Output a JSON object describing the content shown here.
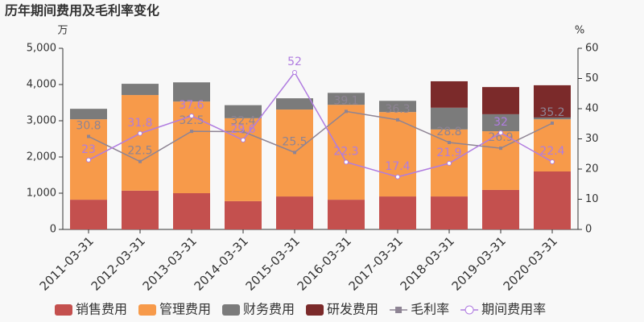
{
  "chart_data": {
    "type": "bar_line",
    "title": "历年期间费用及毛利率变化",
    "y_label": "万",
    "y2_label": "%",
    "categories": [
      "2011-03-31",
      "2012-03-31",
      "2013-03-31",
      "2014-03-31",
      "2015-03-31",
      "2016-03-31",
      "2017-03-31",
      "2018-03-31",
      "2019-03-31",
      "2020-03-31"
    ],
    "series": [
      {
        "name": "销售费用",
        "type": "bar",
        "color": "#c4504e",
        "values": [
          820,
          1070,
          1000,
          780,
          910,
          820,
          910,
          910,
          1090,
          1600
        ]
      },
      {
        "name": "管理费用",
        "type": "bar",
        "color": "#f79a4a",
        "values": [
          2220,
          2640,
          2530,
          2290,
          2400,
          2620,
          2330,
          1850,
          1620,
          1440
        ]
      },
      {
        "name": "财务费用",
        "type": "bar",
        "color": "#7b7b7b",
        "values": [
          290,
          310,
          530,
          360,
          310,
          330,
          310,
          600,
          470,
          50
        ]
      },
      {
        "name": "研发费用",
        "type": "bar",
        "color": "#7b2a2a",
        "values": [
          0,
          0,
          0,
          0,
          0,
          0,
          0,
          730,
          750,
          890
        ]
      },
      {
        "name": "毛利率",
        "type": "line",
        "axis": "y2",
        "marker": "square",
        "color": "#8e8494",
        "values": [
          30.8,
          22.5,
          32.5,
          32.4,
          25.5,
          39.1,
          36.3,
          28.8,
          26.9,
          35.2
        ]
      },
      {
        "name": "期间费用率",
        "type": "line",
        "axis": "y2",
        "marker": "circle",
        "color": "#b07ce0",
        "values": [
          23,
          31.8,
          37.6,
          29.6,
          52,
          22.3,
          17.4,
          21.9,
          32,
          22.4
        ]
      }
    ],
    "ylim": [
      0,
      5000
    ],
    "yticks": [
      0,
      {
        "value": 1000,
        "label": "1,000"
      },
      {
        "value": 2000,
        "label": "2,000"
      },
      {
        "value": 3000,
        "label": "3,000"
      },
      {
        "value": 4000,
        "label": "4,000"
      },
      {
        "value": 5000,
        "label": "5,000"
      }
    ],
    "y2lim": [
      0,
      60
    ],
    "y2ticks": [
      0,
      10,
      20,
      30,
      40,
      50,
      60
    ]
  }
}
